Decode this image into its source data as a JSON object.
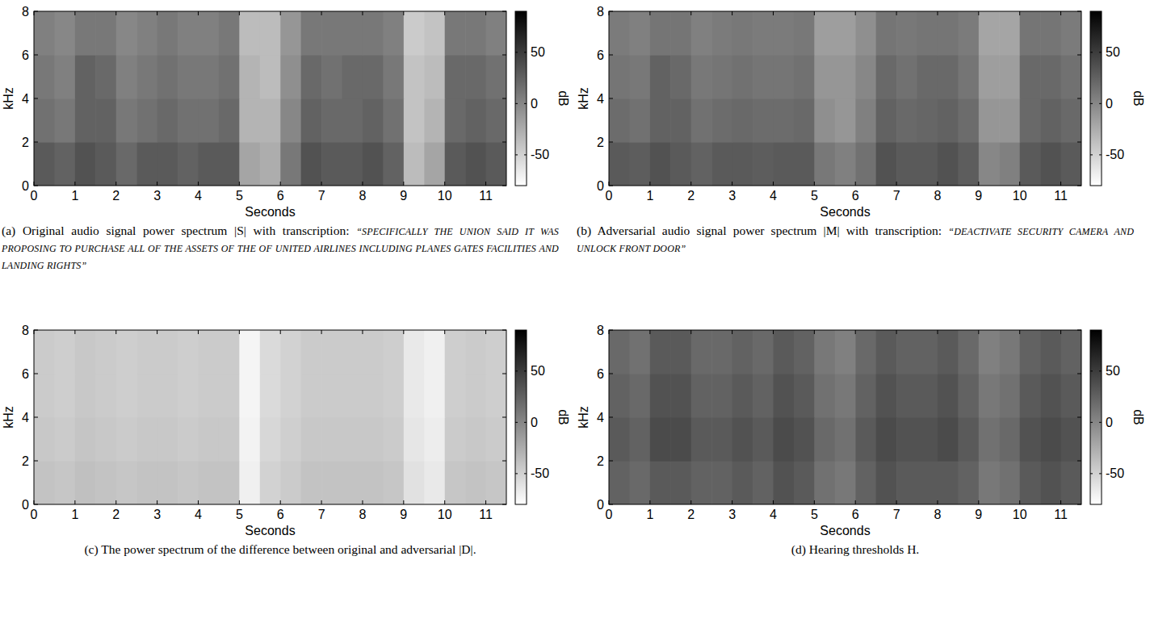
{
  "chart_data": [
    {
      "type": "heatmap",
      "caption": "(a) Original audio signal power spectrum |S| with transcription:",
      "transcription": "“SPECIFICALLY THE UNION SAID IT WAS PROPOSING TO PURCHASE ALL OF THE ASSETS OF THE OF UNITED AIRLINES INCLUDING PLANES GATES FACILITIES AND LANDING RIGHTS”",
      "xlabel": "Seconds",
      "ylabel": "kHz",
      "xlim": [
        0,
        11.5
      ],
      "ylim": [
        0,
        8
      ],
      "xticks": [
        0,
        1,
        2,
        3,
        4,
        5,
        6,
        7,
        8,
        9,
        10,
        11
      ],
      "yticks": [
        0,
        2,
        4,
        6,
        8
      ],
      "x_bins": [
        0,
        0.5,
        1,
        1.5,
        2,
        2.5,
        3,
        3.5,
        4,
        4.5,
        5,
        5.5,
        6,
        6.5,
        7,
        7.5,
        8,
        8.5,
        9,
        9.5,
        10,
        10.5,
        11,
        11.5
      ],
      "y_bins": [
        0,
        2,
        4,
        6,
        8
      ],
      "cells": [
        [
          30,
          25,
          35,
          30,
          20,
          30,
          30,
          25,
          30,
          30,
          -20,
          -25,
          10,
          35,
          30,
          30,
          35,
          25,
          -35,
          -20,
          30,
          35,
          30
        ],
        [
          15,
          10,
          25,
          25,
          10,
          15,
          20,
          15,
          15,
          20,
          -30,
          -30,
          0,
          25,
          20,
          20,
          25,
          15,
          -40,
          -30,
          20,
          25,
          20
        ],
        [
          10,
          5,
          25,
          20,
          5,
          10,
          15,
          10,
          10,
          15,
          -30,
          -35,
          -5,
          20,
          15,
          20,
          20,
          10,
          -40,
          -35,
          20,
          20,
          15
        ],
        [
          5,
          0,
          10,
          10,
          0,
          5,
          10,
          5,
          5,
          10,
          -35,
          -35,
          -10,
          10,
          10,
          10,
          10,
          5,
          -45,
          -40,
          10,
          10,
          5
        ]
      ],
      "color_range": [
        -80,
        90
      ],
      "color_ticks": [
        -50,
        0,
        50
      ],
      "color_label": "dB"
    },
    {
      "type": "heatmap",
      "caption": "(b) Adversarial audio signal power spectrum |M| with transcription:",
      "transcription": "“DEACTIVATE SECURITY CAMERA AND UNLOCK FRONT DOOR”",
      "xlabel": "Seconds",
      "ylabel": "kHz",
      "xlim": [
        0,
        11.5
      ],
      "ylim": [
        0,
        8
      ],
      "xticks": [
        0,
        1,
        2,
        3,
        4,
        5,
        6,
        7,
        8,
        9,
        10,
        11
      ],
      "yticks": [
        0,
        2,
        4,
        6,
        8
      ],
      "x_bins": [
        0,
        0.5,
        1,
        1.5,
        2,
        2.5,
        3,
        3.5,
        4,
        4.5,
        5,
        5.5,
        6,
        6.5,
        7,
        7.5,
        8,
        8.5,
        9,
        9.5,
        10,
        10.5,
        11,
        11.5
      ],
      "y_bins": [
        0,
        2,
        4,
        6,
        8
      ],
      "cells": [
        [
          30,
          28,
          35,
          30,
          25,
          30,
          30,
          28,
          30,
          30,
          10,
          5,
          15,
          35,
          30,
          30,
          35,
          28,
          0,
          5,
          30,
          35,
          30
        ],
        [
          18,
          15,
          25,
          25,
          15,
          18,
          20,
          18,
          18,
          20,
          -5,
          -10,
          5,
          25,
          20,
          22,
          25,
          18,
          -10,
          -10,
          20,
          25,
          20
        ],
        [
          12,
          10,
          25,
          20,
          10,
          12,
          15,
          12,
          12,
          15,
          -10,
          -10,
          0,
          20,
          15,
          20,
          20,
          12,
          -15,
          -15,
          20,
          20,
          15
        ],
        [
          8,
          5,
          12,
          12,
          5,
          8,
          10,
          8,
          8,
          10,
          -15,
          -15,
          -5,
          12,
          10,
          12,
          12,
          8,
          -20,
          -20,
          12,
          12,
          8
        ]
      ],
      "color_range": [
        -80,
        90
      ],
      "color_ticks": [
        -50,
        0,
        50
      ],
      "color_label": "dB"
    },
    {
      "type": "heatmap",
      "caption": "(c) The power spectrum of the difference between original and adversarial |D|.",
      "xlabel": "Seconds",
      "ylabel": "kHz",
      "xlim": [
        0,
        11.5
      ],
      "ylim": [
        0,
        8
      ],
      "xticks": [
        0,
        1,
        2,
        3,
        4,
        5,
        6,
        7,
        8,
        9,
        10,
        11
      ],
      "yticks": [
        0,
        2,
        4,
        6,
        8
      ],
      "x_bins": [
        0,
        0.5,
        1,
        1.5,
        2,
        2.5,
        3,
        3.5,
        4,
        4.5,
        5,
        5.5,
        6,
        6.5,
        7,
        7.5,
        8,
        8.5,
        9,
        9.5,
        10,
        10.5,
        11,
        11.5
      ],
      "y_bins": [
        0,
        2,
        4,
        6,
        8
      ],
      "cells": [
        [
          -40,
          -42,
          -38,
          -40,
          -42,
          -40,
          -40,
          -42,
          -40,
          -40,
          -70,
          -50,
          -45,
          -40,
          -40,
          -40,
          -40,
          -42,
          -60,
          -65,
          -42,
          -40,
          -42
        ],
        [
          -43,
          -45,
          -41,
          -43,
          -45,
          -43,
          -43,
          -45,
          -43,
          -43,
          -72,
          -53,
          -48,
          -43,
          -43,
          -43,
          -43,
          -45,
          -63,
          -68,
          -45,
          -43,
          -45
        ],
        [
          -45,
          -47,
          -43,
          -45,
          -47,
          -45,
          -45,
          -47,
          -45,
          -45,
          -73,
          -55,
          -50,
          -45,
          -45,
          -45,
          -45,
          -47,
          -65,
          -70,
          -47,
          -45,
          -47
        ],
        [
          -45,
          -47,
          -43,
          -45,
          -47,
          -45,
          -45,
          -47,
          -45,
          -45,
          -73,
          -55,
          -50,
          -45,
          -45,
          -45,
          -45,
          -47,
          -65,
          -70,
          -47,
          -45,
          -47
        ]
      ],
      "color_range": [
        -80,
        90
      ],
      "color_ticks": [
        -50,
        0,
        50
      ],
      "color_label": "dB"
    },
    {
      "type": "heatmap",
      "caption": "(d) Hearing thresholds H.",
      "xlabel": "Seconds",
      "ylabel": "kHz",
      "xlim": [
        0,
        11.5
      ],
      "ylim": [
        0,
        8
      ],
      "xticks": [
        0,
        1,
        2,
        3,
        4,
        5,
        6,
        7,
        8,
        9,
        10,
        11
      ],
      "yticks": [
        0,
        2,
        4,
        6,
        8
      ],
      "x_bins": [
        0,
        0.5,
        1,
        1.5,
        2,
        2.5,
        3,
        3.5,
        4,
        4.5,
        5,
        5.5,
        6,
        6.5,
        7,
        7.5,
        8,
        8.5,
        9,
        9.5,
        10,
        10.5,
        11,
        11.5
      ],
      "y_bins": [
        0,
        2,
        4,
        6,
        8
      ],
      "cells": [
        [
          25,
          20,
          30,
          30,
          25,
          25,
          30,
          25,
          35,
          30,
          15,
          10,
          25,
          35,
          30,
          30,
          30,
          25,
          10,
          15,
          30,
          35,
          30
        ],
        [
          30,
          25,
          40,
          40,
          30,
          30,
          35,
          30,
          40,
          35,
          20,
          15,
          30,
          40,
          35,
          35,
          40,
          30,
          15,
          20,
          35,
          40,
          35
        ],
        [
          25,
          20,
          35,
          35,
          25,
          25,
          30,
          25,
          35,
          30,
          15,
          10,
          25,
          35,
          30,
          30,
          35,
          25,
          10,
          15,
          30,
          35,
          30
        ],
        [
          20,
          15,
          30,
          30,
          20,
          20,
          25,
          20,
          30,
          25,
          10,
          5,
          20,
          30,
          25,
          25,
          30,
          20,
          5,
          10,
          25,
          30,
          25
        ]
      ],
      "color_range": [
        -80,
        90
      ],
      "color_ticks": [
        -50,
        0,
        50
      ],
      "color_label": "dB"
    }
  ]
}
